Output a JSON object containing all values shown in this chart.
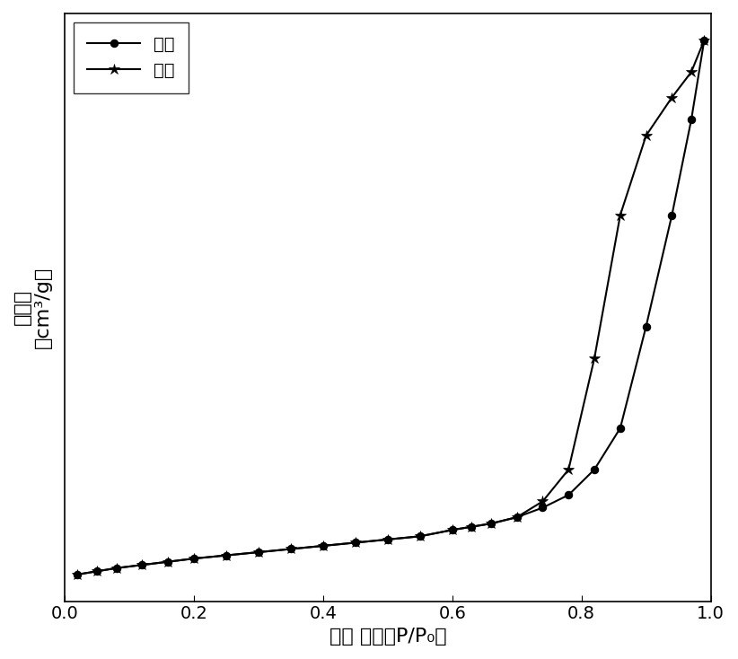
{
  "adsorption_x": [
    0.02,
    0.05,
    0.08,
    0.12,
    0.16,
    0.2,
    0.25,
    0.3,
    0.35,
    0.4,
    0.45,
    0.5,
    0.55,
    0.6,
    0.63,
    0.66,
    0.7,
    0.74,
    0.78,
    0.82,
    0.86,
    0.9,
    0.94,
    0.97,
    0.99
  ],
  "adsorption_y": [
    22,
    23,
    24,
    25,
    26,
    27,
    28,
    29,
    30,
    31,
    32,
    33,
    34,
    36,
    37,
    38,
    40,
    43,
    47,
    55,
    68,
    100,
    135,
    165,
    190
  ],
  "desorption_x": [
    0.02,
    0.05,
    0.08,
    0.12,
    0.16,
    0.2,
    0.25,
    0.3,
    0.35,
    0.4,
    0.45,
    0.5,
    0.55,
    0.6,
    0.63,
    0.66,
    0.7,
    0.74,
    0.78,
    0.82,
    0.86,
    0.9,
    0.94,
    0.97,
    0.99
  ],
  "desorption_y": [
    22,
    23,
    24,
    25,
    26,
    27,
    28,
    29,
    30,
    31,
    32,
    33,
    34,
    36,
    37,
    38,
    40,
    45,
    55,
    90,
    135,
    160,
    172,
    180,
    190
  ],
  "xlabel": "相对 压力（P/P₀）",
  "ylabel_line1": "吸附量",
  "ylabel_line2": "（cm³/g）",
  "legend_adsorption": "吸附",
  "legend_desorption": "脱附",
  "xlim": [
    0.0,
    1.0
  ],
  "line_color": "#000000",
  "background_color": "#ffffff",
  "label_fontsize": 16
}
